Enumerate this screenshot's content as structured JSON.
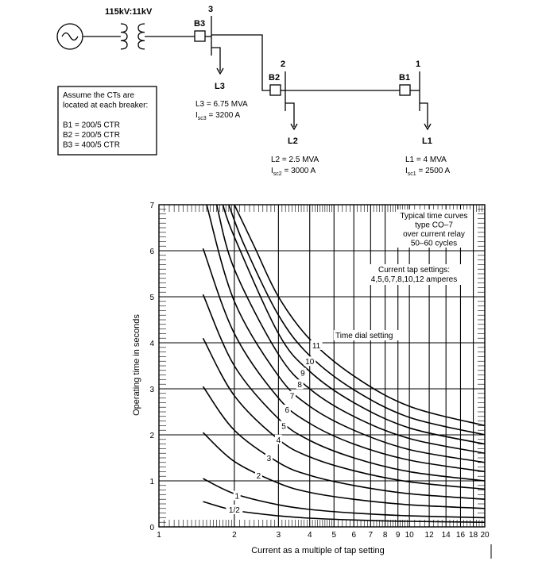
{
  "diagram": {
    "transformer_label": "115kV:11kV",
    "buses": [
      {
        "id": "3",
        "breaker": "B3",
        "load": "L3",
        "load_text": "L3 = 6.75 MVA",
        "isc_prefix": "I",
        "isc_sub": "sc3",
        "isc_value": " = 3200 A"
      },
      {
        "id": "2",
        "breaker": "B2",
        "load": "L2",
        "load_text": "L2 = 2.5 MVA",
        "isc_prefix": "I",
        "isc_sub": "sc2",
        "isc_value": " = 3000 A"
      },
      {
        "id": "1",
        "breaker": "B1",
        "load": "L1",
        "load_text": "L1 = 4 MVA",
        "isc_prefix": "I",
        "isc_sub": "sc1",
        "isc_value": " = 2500 A"
      }
    ],
    "note_lines": [
      "Assume the CTs are",
      "located at each breaker:",
      "",
      "B1 = 200/5 CTR",
      "B2 = 200/5 CTR",
      "B3 = 400/5 CTR"
    ]
  },
  "chart_data": {
    "type": "line",
    "title_lines": [
      "Typical time curves",
      "type CO–7",
      "over current relay",
      "50–60 cycles"
    ],
    "tap_lines": [
      "Current tap settings:",
      "4,5,6,7,8,10,12 amperes"
    ],
    "dial_label": "Time dial setting",
    "xlabel": "Current as a multiple of tap setting",
    "ylabel": "Operating time in seconds",
    "x_scale": "log",
    "xlim": [
      1,
      20
    ],
    "ylim": [
      0,
      7
    ],
    "x_tick_labels": [
      "1",
      "2",
      "3",
      "4",
      "5",
      "6",
      "7",
      "8",
      "9",
      "10",
      "12",
      "14",
      "16",
      "18",
      "20"
    ],
    "y_tick_labels": [
      "0",
      "1",
      "2",
      "3",
      "4",
      "5",
      "6",
      "7"
    ],
    "series": [
      {
        "name": "1/2",
        "x": [
          1.5,
          2,
          3,
          4,
          6,
          10,
          20
        ],
        "y": [
          0.55,
          0.36,
          0.24,
          0.19,
          0.15,
          0.12,
          0.1
        ]
      },
      {
        "name": "1",
        "x": [
          1.5,
          2,
          3,
          4,
          6,
          10,
          20
        ],
        "y": [
          1.05,
          0.72,
          0.48,
          0.38,
          0.3,
          0.24,
          0.2
        ]
      },
      {
        "name": "2",
        "x": [
          1.5,
          2,
          3,
          4,
          6,
          10,
          20
        ],
        "y": [
          2.05,
          1.42,
          0.95,
          0.75,
          0.6,
          0.48,
          0.4
        ]
      },
      {
        "name": "3",
        "x": [
          1.5,
          2,
          3,
          4,
          6,
          10,
          20
        ],
        "y": [
          3.05,
          2.1,
          1.4,
          1.12,
          0.9,
          0.72,
          0.6
        ]
      },
      {
        "name": "4",
        "x": [
          1.5,
          2,
          3,
          4,
          6,
          10,
          20
        ],
        "y": [
          4.1,
          2.85,
          1.9,
          1.52,
          1.22,
          0.98,
          0.82
        ]
      },
      {
        "name": "5",
        "x": [
          1.5,
          2,
          3,
          4,
          6,
          10,
          20
        ],
        "y": [
          5.05,
          3.5,
          2.35,
          1.88,
          1.5,
          1.2,
          1.0
        ]
      },
      {
        "name": "6",
        "x": [
          1.5,
          2,
          3,
          4,
          6,
          10,
          20
        ],
        "y": [
          6.05,
          4.2,
          2.8,
          2.25,
          1.8,
          1.45,
          1.2
        ]
      },
      {
        "name": "7",
        "x": [
          1.55,
          2,
          3,
          4,
          6,
          10,
          20
        ],
        "y": [
          7.0,
          4.9,
          3.28,
          2.62,
          2.1,
          1.68,
          1.4
        ]
      },
      {
        "name": "8",
        "x": [
          1.7,
          2,
          3,
          4,
          6,
          10,
          20
        ],
        "y": [
          7.0,
          5.6,
          3.75,
          3.0,
          2.4,
          1.92,
          1.6
        ]
      },
      {
        "name": "9",
        "x": [
          1.8,
          2,
          3,
          4,
          6,
          10,
          20
        ],
        "y": [
          7.0,
          6.3,
          4.2,
          3.38,
          2.7,
          2.15,
          1.8
        ]
      },
      {
        "name": "10",
        "x": [
          1.9,
          2.2,
          3,
          4,
          6,
          10,
          20
        ],
        "y": [
          7.0,
          6.1,
          4.6,
          3.72,
          2.98,
          2.38,
          2.0
        ]
      },
      {
        "name": "11",
        "x": [
          2.0,
          2.4,
          3,
          4,
          6,
          10,
          20
        ],
        "y": [
          7.0,
          6.1,
          5.0,
          4.08,
          3.28,
          2.62,
          2.2
        ]
      }
    ],
    "curve_labels": [
      {
        "text": "1/2",
        "x": 2.0,
        "y": 0.38
      },
      {
        "text": "1",
        "x": 2.05,
        "y": 0.68
      },
      {
        "text": "2",
        "x": 2.5,
        "y": 1.12
      },
      {
        "text": "3",
        "x": 2.75,
        "y": 1.5
      },
      {
        "text": "4",
        "x": 3.0,
        "y": 1.9
      },
      {
        "text": "5",
        "x": 3.15,
        "y": 2.2
      },
      {
        "text": "6",
        "x": 3.25,
        "y": 2.55
      },
      {
        "text": "7",
        "x": 3.4,
        "y": 2.85
      },
      {
        "text": "8",
        "x": 3.65,
        "y": 3.1
      },
      {
        "text": "9",
        "x": 3.75,
        "y": 3.35
      },
      {
        "text": "10",
        "x": 4.0,
        "y": 3.6
      },
      {
        "text": "11",
        "x": 4.25,
        "y": 3.95
      }
    ]
  }
}
